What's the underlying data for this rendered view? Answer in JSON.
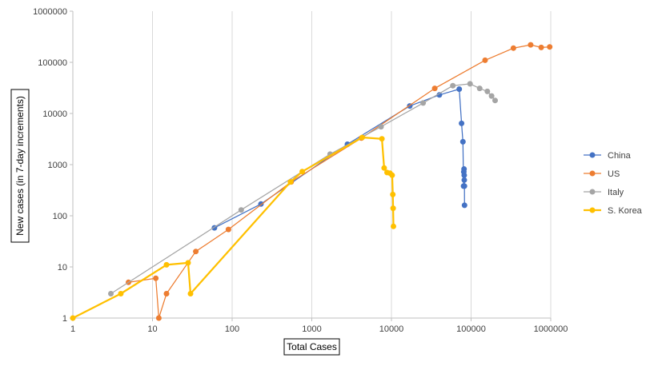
{
  "chart_data": {
    "type": "scatter",
    "x_scale": "log",
    "y_scale": "log",
    "xlabel": "Total Cases",
    "ylabel": "New cases (in 7-day increments)",
    "xlim": [
      1,
      1000000
    ],
    "ylim": [
      1,
      1000000
    ],
    "x_ticks": [
      "1",
      "10",
      "100",
      "1000",
      "10000",
      "100000",
      "1000000"
    ],
    "y_ticks": [
      "1",
      "10",
      "100",
      "1000",
      "10000",
      "100000",
      "1000000"
    ],
    "grid": "vertical",
    "legend_position": "right",
    "series": [
      {
        "name": "China",
        "color": "#4472c4",
        "points": [
          [
            60,
            58
          ],
          [
            230,
            170
          ],
          [
            2800,
            2500
          ],
          [
            17000,
            14000
          ],
          [
            40000,
            23000
          ],
          [
            71000,
            30000
          ],
          [
            76000,
            6400
          ],
          [
            79000,
            2800
          ],
          [
            80500,
            380
          ],
          [
            81000,
            720
          ],
          [
            81500,
            820
          ],
          [
            82000,
            620
          ],
          [
            82200,
            500
          ],
          [
            82500,
            380
          ],
          [
            82700,
            160
          ]
        ]
      },
      {
        "name": "US",
        "color": "#ed7d31",
        "points": [
          [
            5,
            5
          ],
          [
            11,
            6
          ],
          [
            12,
            1
          ],
          [
            15,
            3
          ],
          [
            35,
            20
          ],
          [
            90,
            54
          ],
          [
            550,
            460
          ],
          [
            4200,
            3300
          ],
          [
            35000,
            31000
          ],
          [
            150000,
            110000
          ],
          [
            340000,
            190000
          ],
          [
            560000,
            220000
          ],
          [
            760000,
            195000
          ],
          [
            970000,
            200000
          ]
        ]
      },
      {
        "name": "Italy",
        "color": "#a5a5a5",
        "points": [
          [
            3,
            3
          ],
          [
            130,
            130
          ],
          [
            1700,
            1600
          ],
          [
            7400,
            5500
          ],
          [
            25000,
            16000
          ],
          [
            59000,
            35000
          ],
          [
            97000,
            38000
          ],
          [
            128000,
            31000
          ],
          [
            160000,
            27000
          ],
          [
            181000,
            22000
          ],
          [
            200000,
            18000
          ]
        ]
      },
      {
        "name": "S. Korea",
        "color": "#ffc000",
        "points": [
          [
            1,
            1
          ],
          [
            4,
            3
          ],
          [
            15,
            11
          ],
          [
            28,
            12
          ],
          [
            30,
            3
          ],
          [
            540,
            460
          ],
          [
            760,
            730
          ],
          [
            4300,
            3400
          ],
          [
            7600,
            3200
          ],
          [
            8100,
            860
          ],
          [
            8800,
            700
          ],
          [
            9600,
            680
          ],
          [
            10200,
            620
          ],
          [
            10400,
            260
          ],
          [
            10500,
            140
          ],
          [
            10600,
            62
          ]
        ]
      }
    ]
  }
}
